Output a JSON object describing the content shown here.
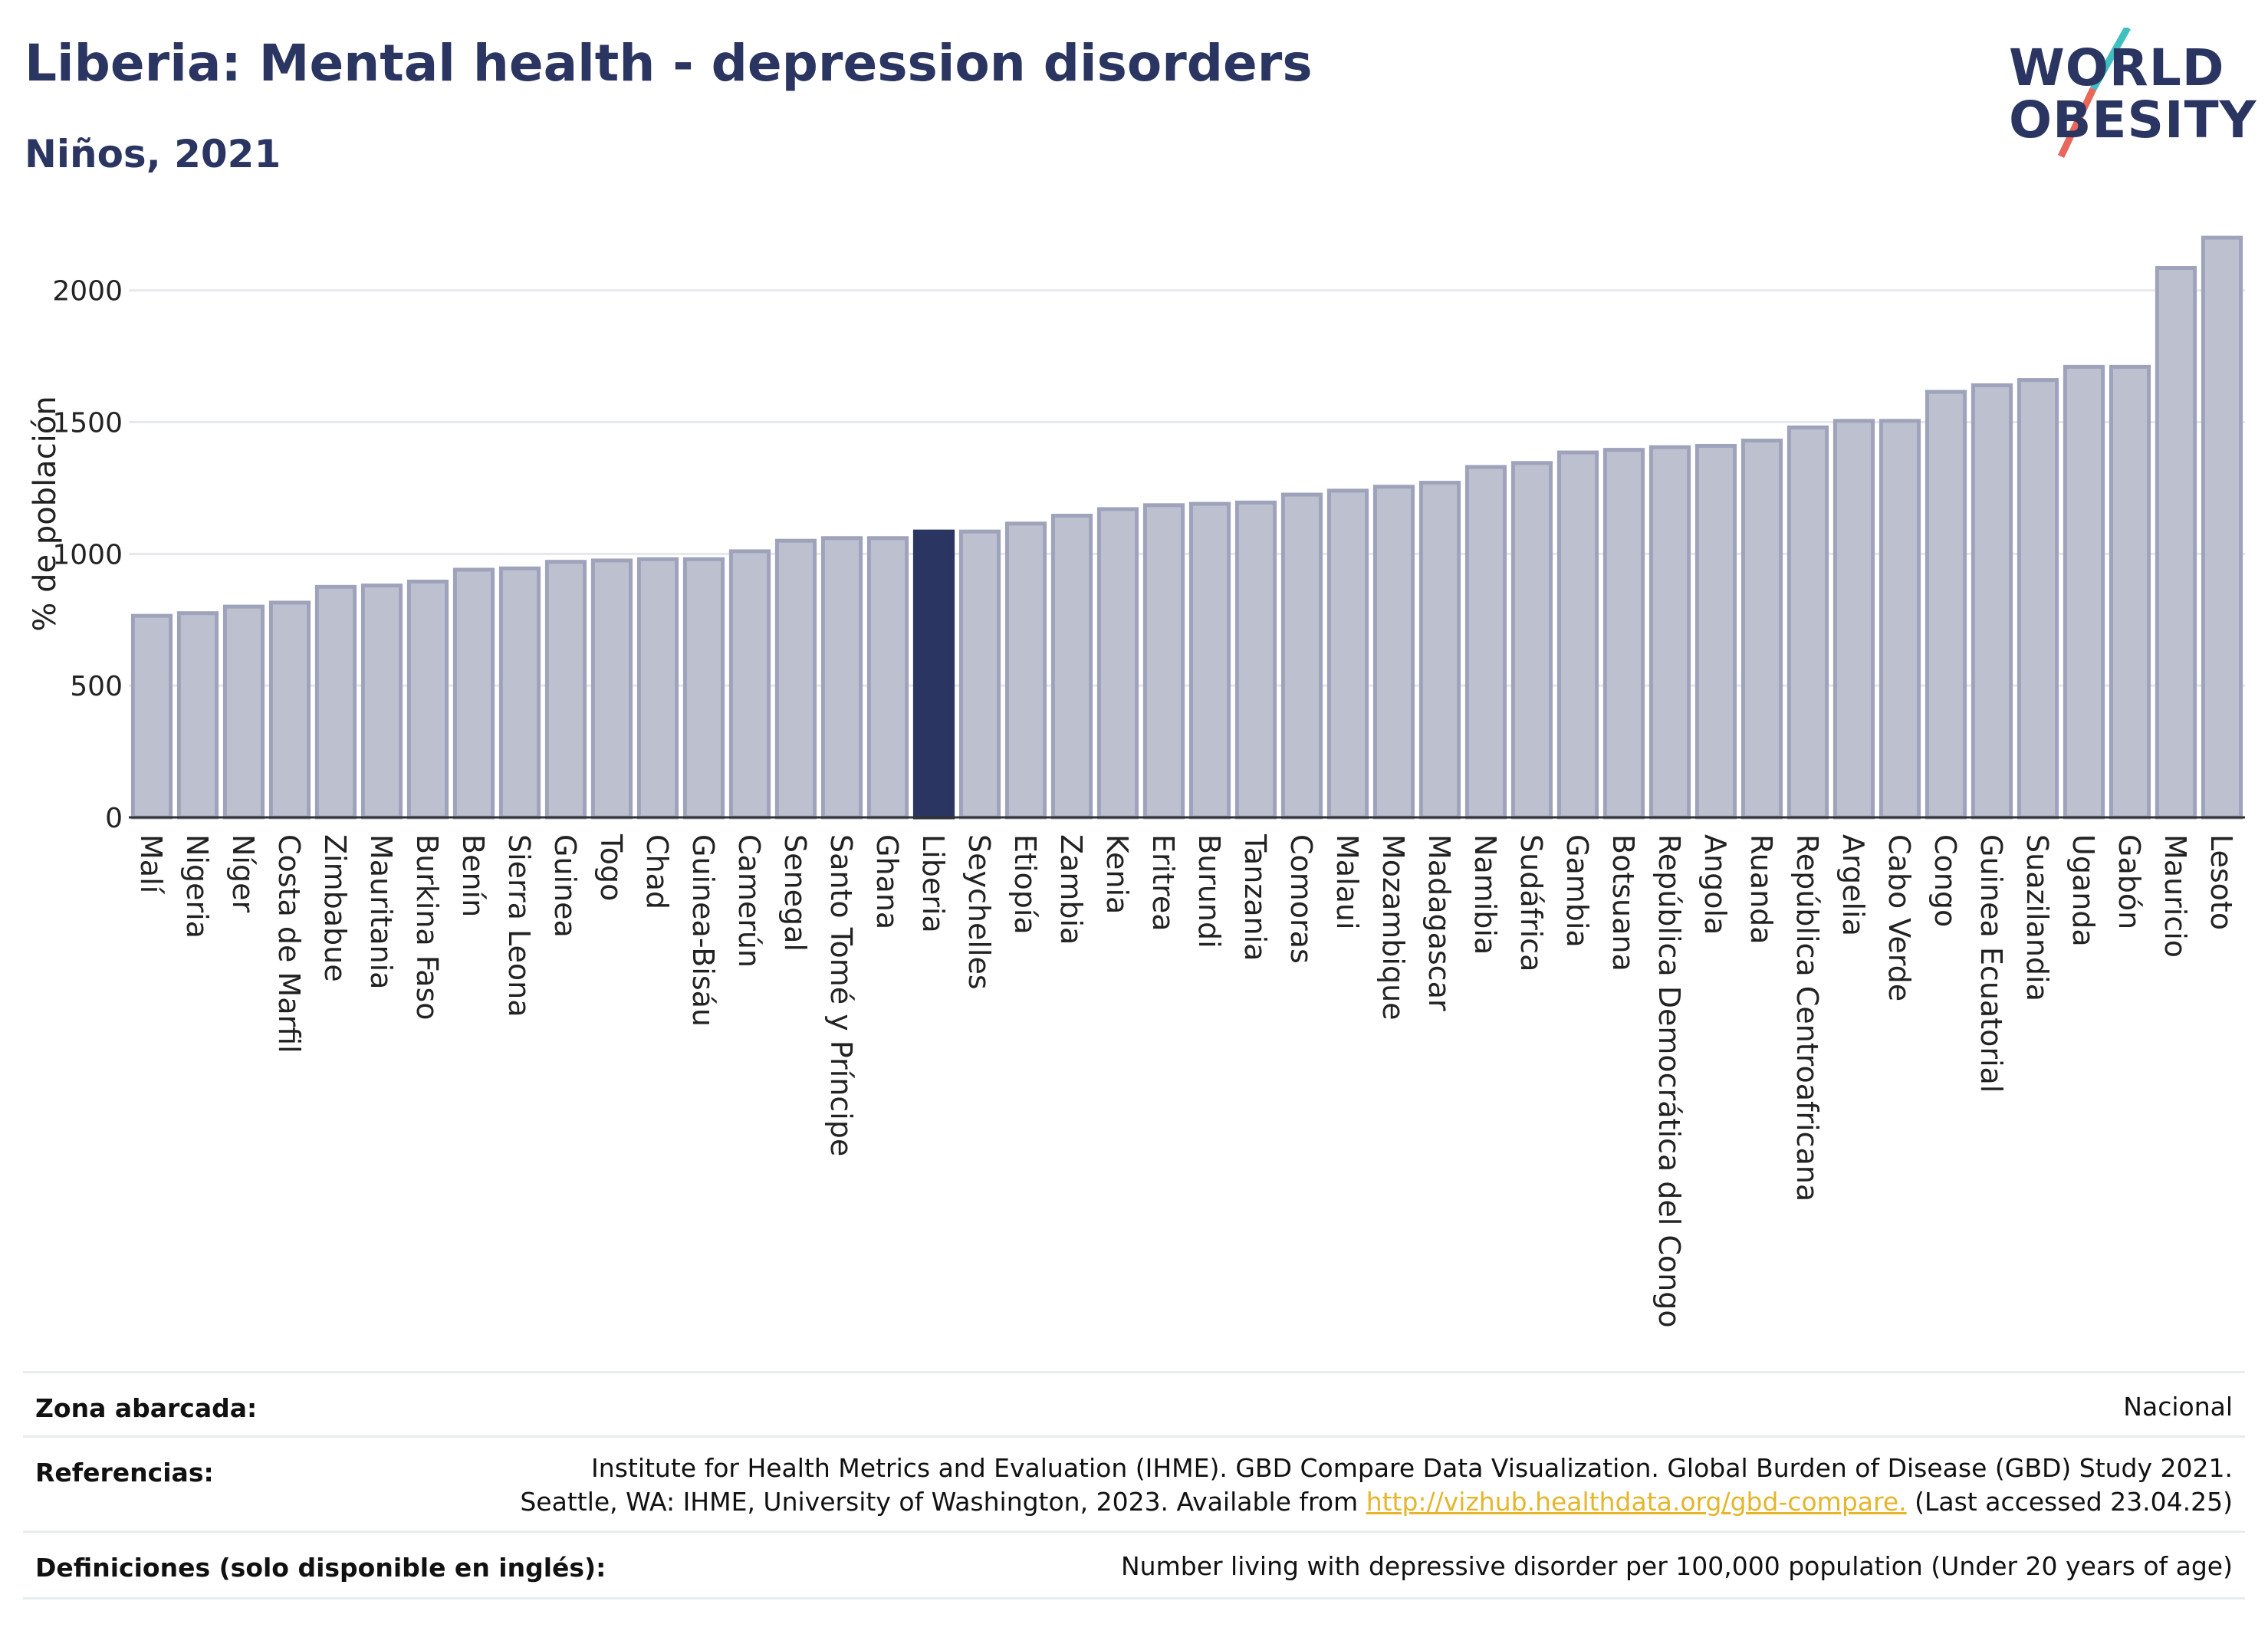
{
  "header": {
    "title": "Liberia: Mental health - depression disorders",
    "subtitle": "Niños, 2021",
    "logo_line1": "WORLD",
    "logo_line2": "OBESITY"
  },
  "colors": {
    "title": "#2b3561",
    "bar": "#bcc0cf",
    "bar_border": "#9ea3bb",
    "highlight": "#2b3561",
    "grid": "#e5e8ec",
    "logo_teal": "#3fbfbf",
    "logo_coral": "#e8665a",
    "link": "#e5b52a"
  },
  "chart_data": {
    "type": "bar",
    "ylabel": "% de población",
    "ylim": [
      0,
      2200
    ],
    "yticks": [
      0,
      500,
      1000,
      1500,
      2000
    ],
    "highlight": "Liberia",
    "grid": true,
    "categories": [
      "Malí",
      "Nigeria",
      "Níger",
      "Costa de Marfil",
      "Zimbabue",
      "Mauritania",
      "Burkina Faso",
      "Benín",
      "Sierra Leona",
      "Guinea",
      "Togo",
      "Chad",
      "Guinea-Bisáu",
      "Camerún",
      "Senegal",
      "Santo Tomé y Príncipe",
      "Ghana",
      "Liberia",
      "Seychelles",
      "Etiopía",
      "Zambia",
      "Kenia",
      "Eritrea",
      "Burundi",
      "Tanzania",
      "Comoras",
      "Malaui",
      "Mozambique",
      "Madagascar",
      "Namibia",
      "Sudáfrica",
      "Gambia",
      "Botsuana",
      "República Democrática del Congo",
      "Angola",
      "Ruanda",
      "República Centroafricana",
      "Argelia",
      "Cabo Verde",
      "Congo",
      "Guinea Ecuatorial",
      "Suazilandia",
      "Uganda",
      "Gabón",
      "Mauricio",
      "Lesoto"
    ],
    "values": [
      765,
      775,
      800,
      815,
      875,
      880,
      895,
      940,
      945,
      970,
      975,
      980,
      980,
      1010,
      1050,
      1060,
      1060,
      1085,
      1085,
      1115,
      1145,
      1170,
      1185,
      1190,
      1195,
      1225,
      1240,
      1255,
      1270,
      1330,
      1345,
      1385,
      1395,
      1405,
      1410,
      1430,
      1480,
      1505,
      1505,
      1615,
      1640,
      1660,
      1710,
      1710,
      2085,
      2200
    ]
  },
  "meta": {
    "zona_label": "Zona abarcada:",
    "zona_value": "Nacional",
    "ref_label": "Referencias:",
    "ref_line1": "Institute for Health Metrics and Evaluation (IHME). GBD Compare Data Visualization. Global Burden of Disease (GBD) Study 2021.",
    "ref_line2_pre": "Seattle, WA: IHME, University of Washington, 2023. Available from ",
    "ref_link": "http://vizhub.healthdata.org/gbd-compare.",
    "ref_line2_post": " (Last accessed 23.04.25)",
    "def_label": "Definiciones (solo disponible en inglés):",
    "def_value": "Number living with depressive disorder per 100,000 population (Under 20 years of age)"
  }
}
